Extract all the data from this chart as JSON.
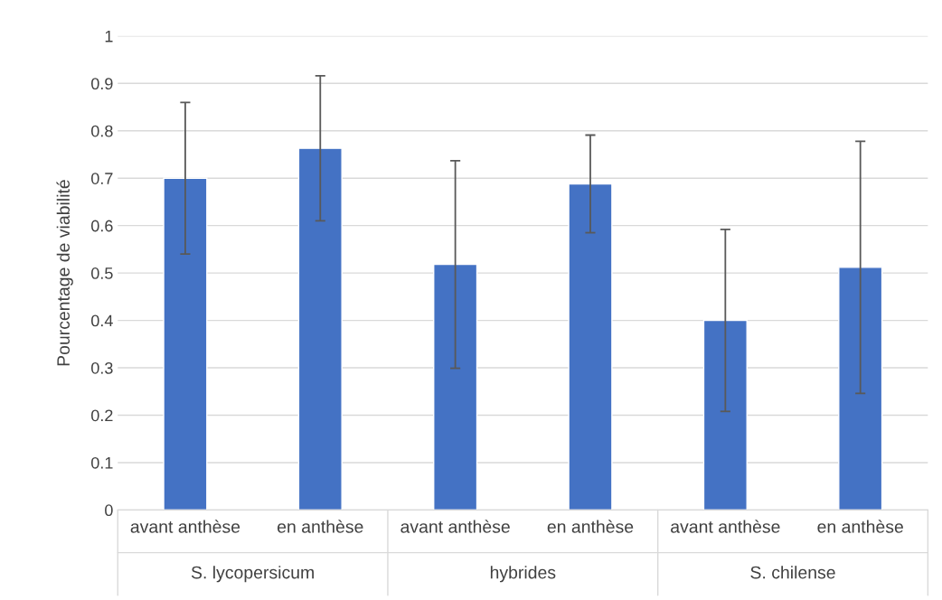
{
  "chart_data": {
    "type": "bar",
    "ylabel": "Pourcentage de viabilité",
    "categories": [
      "avant anthèse",
      "en anthèse",
      "avant anthèse",
      "en anthèse",
      "avant anthèse",
      "en anthèse"
    ],
    "values": [
      0.7,
      0.763,
      0.518,
      0.688,
      0.4,
      0.512
    ],
    "errors": [
      0.16,
      0.153,
      0.219,
      0.103,
      0.192,
      0.266
    ],
    "color": "#4472c4",
    "annotations": [
      "S. lycopersicum",
      "hybrides",
      "S. chilense"
    ],
    "ylim": [
      0,
      1
    ],
    "yticks": [
      0,
      0.1,
      0.2,
      0.3,
      0.4,
      0.5,
      0.6,
      0.7,
      0.8,
      0.9,
      1
    ],
    "grid": "y"
  }
}
